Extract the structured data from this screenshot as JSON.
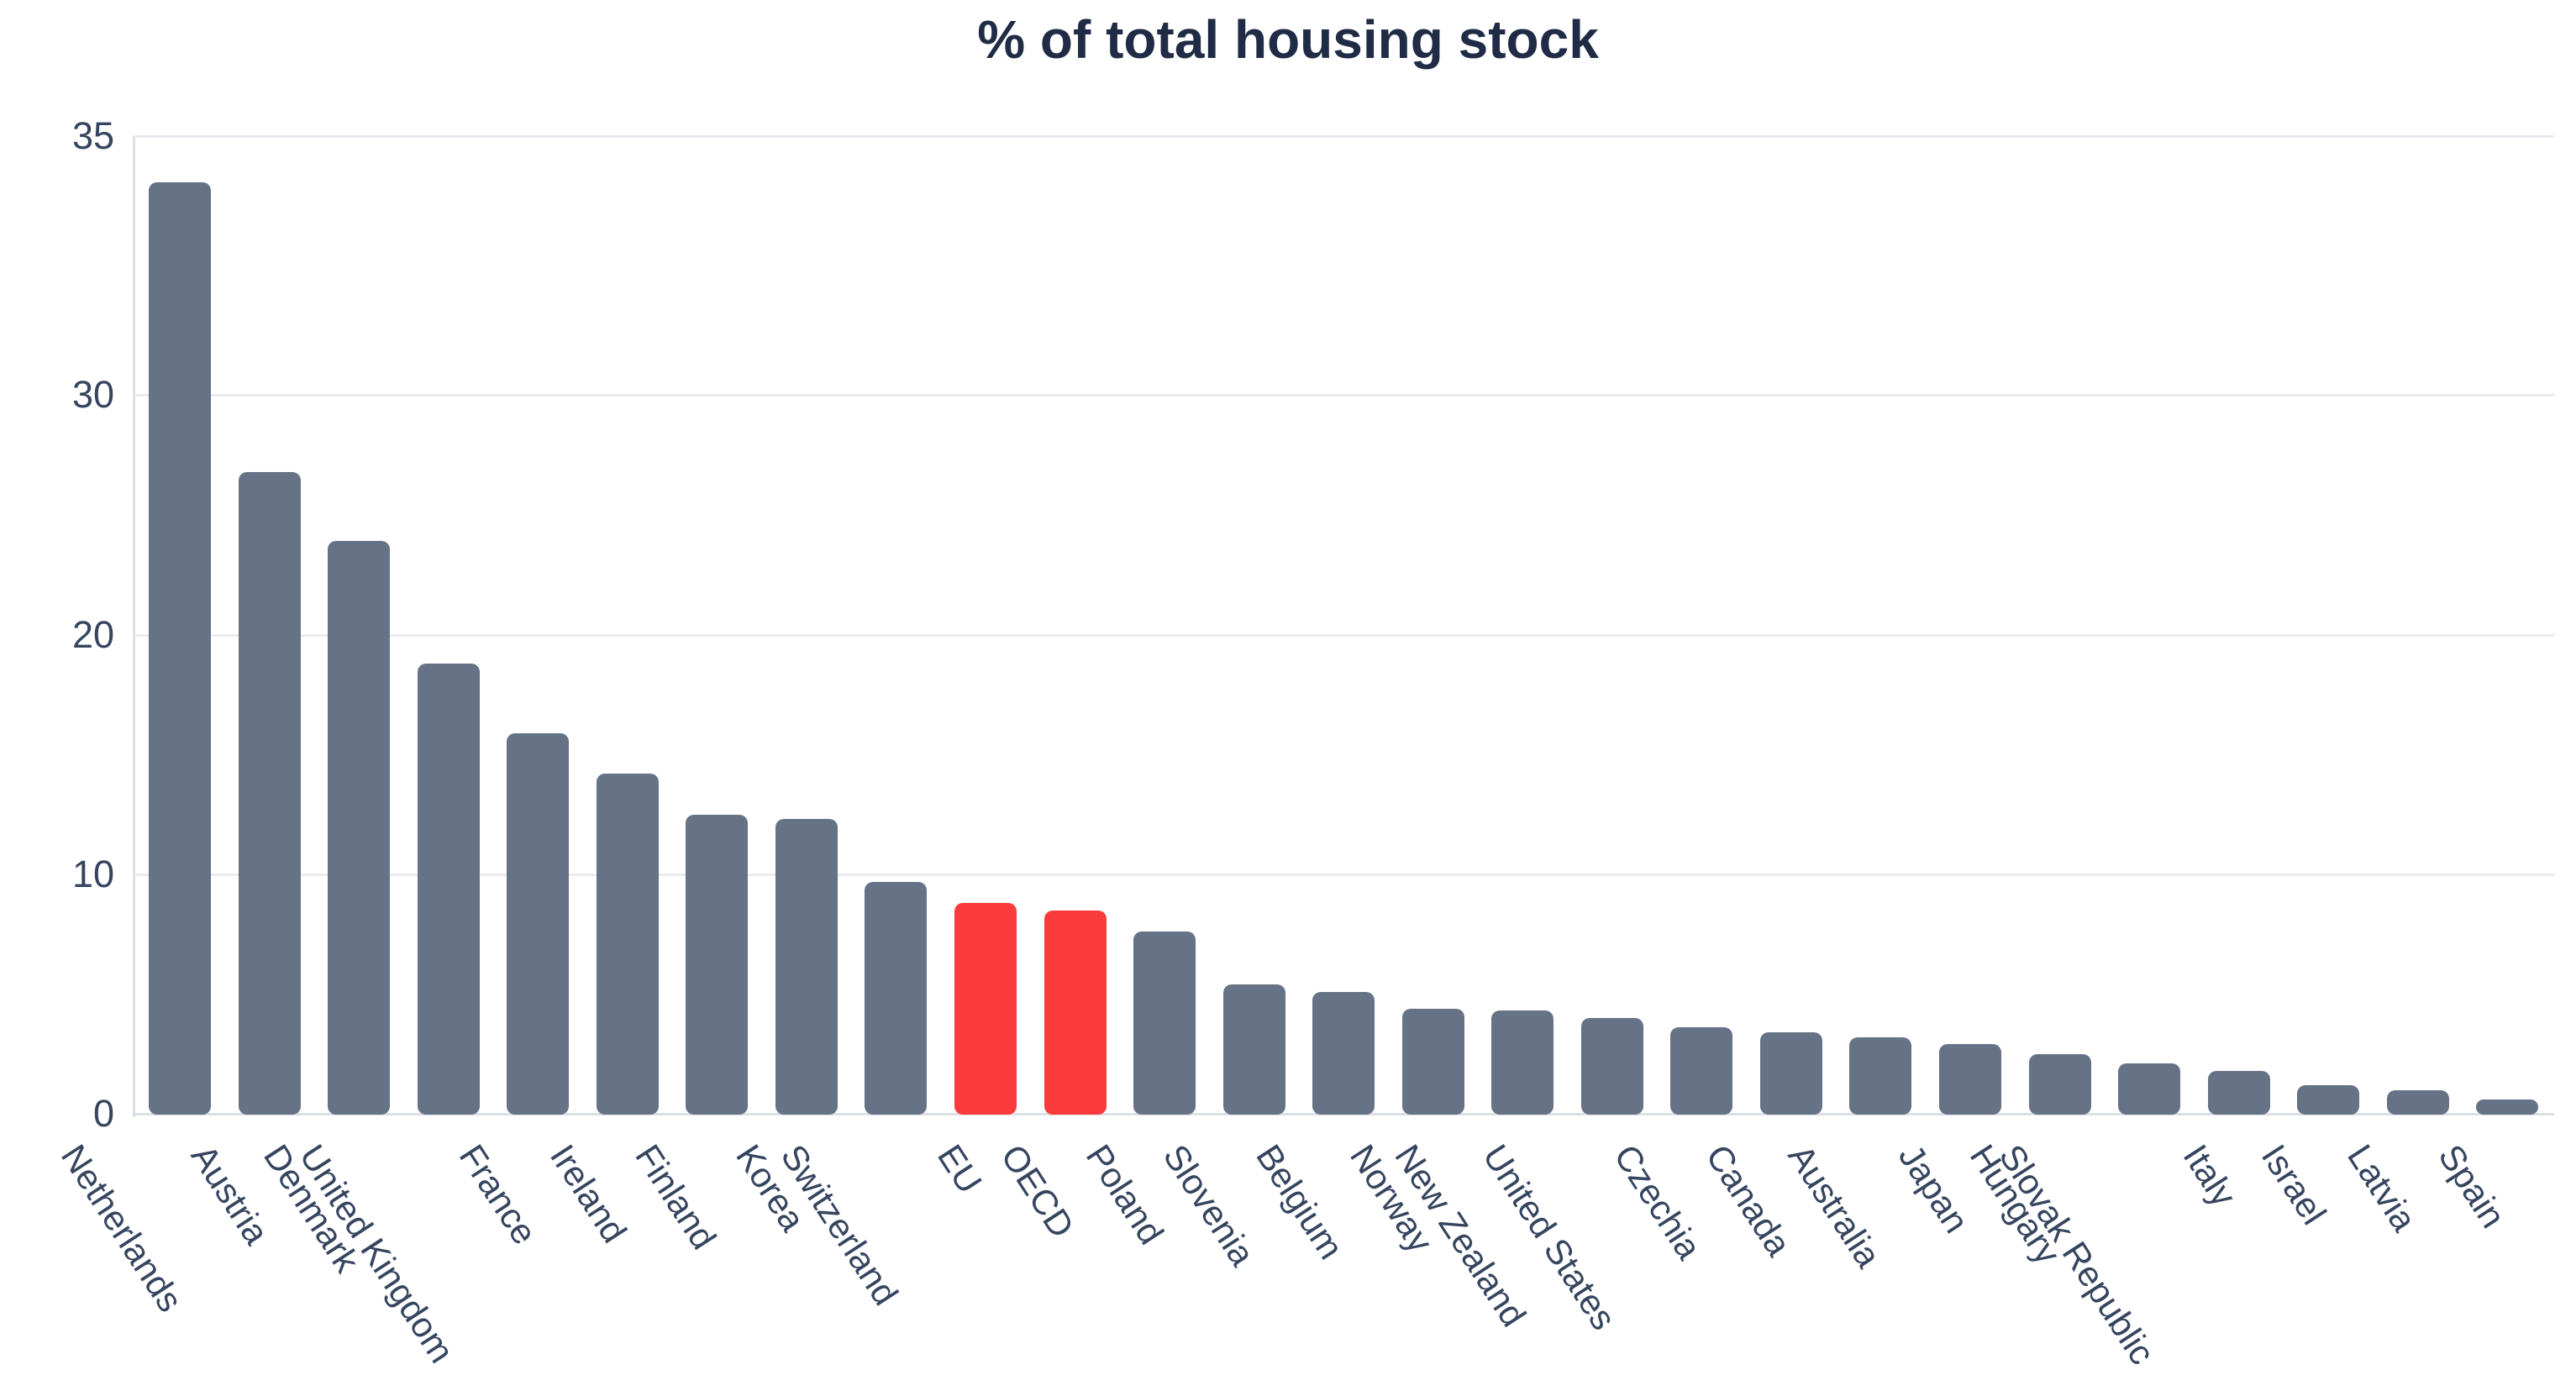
{
  "chart_data": {
    "type": "bar",
    "title": "% of total housing stock",
    "categories": [
      "Netherlands",
      "Austria",
      "Denmark",
      "United Kingdom",
      "France",
      "Ireland",
      "Finland",
      "Korea",
      "Switzerland",
      "EU",
      "OECD",
      "Poland",
      "Slovenia",
      "Belgium",
      "Norway",
      "New Zealand",
      "United States",
      "Czechia",
      "Canada",
      "Australia",
      "Japan",
      "Hungary",
      "Slovak Republic",
      "Italy",
      "Israel",
      "Latvia",
      "Spain"
    ],
    "values": [
      34.1,
      26.8,
      23.9,
      18.8,
      15.9,
      14.2,
      12.5,
      12.3,
      9.7,
      8.8,
      8.5,
      7.6,
      5.4,
      5.1,
      4.4,
      4.3,
      4.0,
      3.6,
      3.4,
      3.2,
      2.9,
      2.5,
      2.1,
      1.8,
      1.2,
      1.0,
      0.6
    ],
    "highlighted": [
      "EU",
      "OECD"
    ],
    "yticks": [
      0,
      10,
      20,
      30,
      35
    ],
    "ytick_labels": [
      "0",
      "10",
      "20",
      "30",
      "35"
    ],
    "ylim": [
      0,
      35
    ],
    "xlabel": "",
    "ylabel": "",
    "grid": true,
    "legend": "none",
    "colors": {
      "bar": "#667286",
      "highlight": "#FA3B3B",
      "title": "#202C46",
      "tick": "#36455F",
      "grid": "#EAECF0",
      "axis": "#DCE0E6"
    }
  }
}
